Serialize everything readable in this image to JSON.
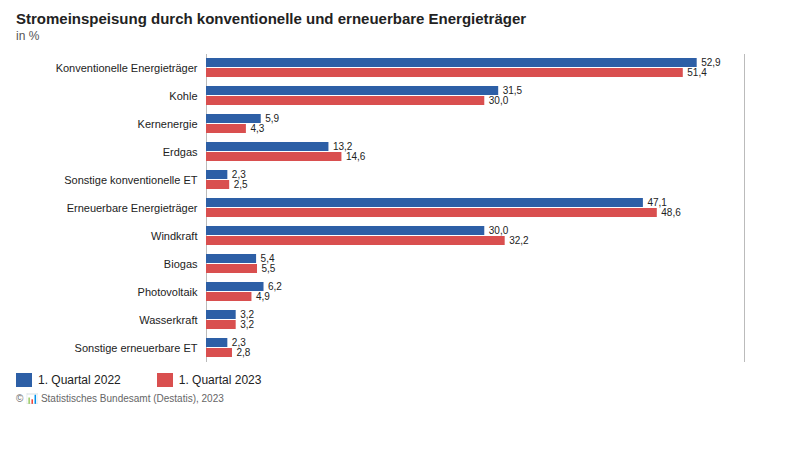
{
  "chart_data": {
    "type": "bar",
    "orientation": "horizontal",
    "title": "Stromeinspeisung durch konventionelle und erneuerbare Energieträger",
    "subtitle": "in %",
    "caption": "© 📊 Statistisches Bundesamt (Destatis), 2023",
    "categories": [
      "Konventionelle Energieträger",
      "Kohle",
      "Kernenergie",
      "Erdgas",
      "Sonstige konventionelle ET",
      "Erneuerbare Energieträger",
      "Windkraft",
      "Biogas",
      "Photovoltaik",
      "Wasserkraft",
      "Sonstige erneuerbare ET"
    ],
    "series": [
      {
        "name": "1. Quartal 2022",
        "color": "#2d5fa6",
        "values": [
          52.9,
          31.5,
          5.9,
          13.2,
          2.3,
          47.1,
          30.0,
          5.4,
          6.2,
          3.2,
          2.3
        ],
        "value_labels": [
          "52,9",
          "31,5",
          "5,9",
          "13,2",
          "2,3",
          "47,1",
          "30,0",
          "5,4",
          "6,2",
          "3,2",
          "2,3"
        ]
      },
      {
        "name": "1. Quartal 2023",
        "color": "#d94f4f",
        "values": [
          51.4,
          30.0,
          4.3,
          14.6,
          2.5,
          48.6,
          32.2,
          5.5,
          4.9,
          3.2,
          2.8
        ],
        "value_labels": [
          "51,4",
          "30,0",
          "4,3",
          "14,6",
          "2,5",
          "48,6",
          "32,2",
          "5,5",
          "4,9",
          "3,2",
          "2,8"
        ]
      }
    ],
    "xlim": [
      0,
      58
    ],
    "tick_labels": "y",
    "data_labels": true,
    "grid": false,
    "legend": "bottom-left"
  }
}
